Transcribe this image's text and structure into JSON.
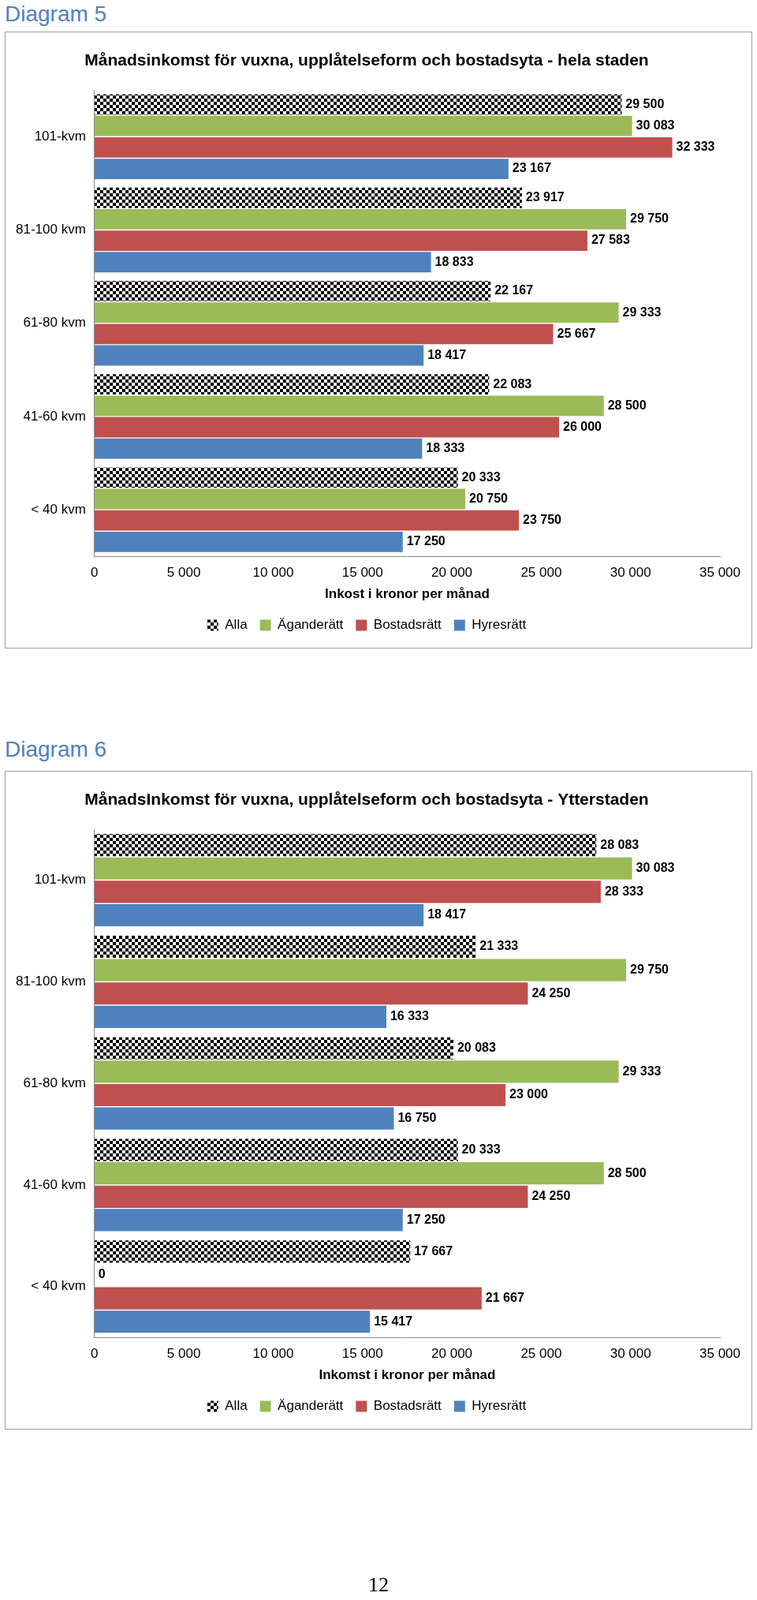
{
  "chart_data": [
    {
      "caption": "Diagram 5",
      "type": "bar",
      "orientation": "horizontal",
      "title": "Månadsinkomst för vuxna, upplåtelseform och bostadsyta - hela staden",
      "x_label": "Inkost i kronor per månad",
      "categories": [
        "101-kvm",
        "81-100 kvm",
        "61-80 kvm",
        "41-60 kvm",
        "< 40 kvm"
      ],
      "series": [
        {
          "name": "Alla",
          "color": "#000000",
          "values": [
            29500,
            23917,
            22167,
            22083,
            20333
          ],
          "value_labels": [
            "29 500",
            "23 917",
            "22 167",
            "22 083",
            "20 333"
          ]
        },
        {
          "name": "Äganderätt",
          "color": "#9bbb59",
          "values": [
            30083,
            29750,
            29333,
            28500,
            20750
          ],
          "value_labels": [
            "30 083",
            "29 750",
            "29 333",
            "28 500",
            "20 750"
          ]
        },
        {
          "name": "Bostadsrätt",
          "color": "#c0504d",
          "values": [
            32333,
            27583,
            25667,
            26000,
            23750
          ],
          "value_labels": [
            "32 333",
            "27 583",
            "25 667",
            "26 000",
            "23 750"
          ]
        },
        {
          "name": "Hyresrätt",
          "color": "#4f81bd",
          "values": [
            23167,
            18833,
            18417,
            18333,
            17250
          ],
          "value_labels": [
            "23 167",
            "18 833",
            "18 417",
            "18 333",
            "17 250"
          ]
        }
      ],
      "xlim": [
        0,
        35000
      ],
      "xticks": [
        0,
        {
          "value": 5000,
          "label": "5 000"
        },
        {
          "value": 10000,
          "label": "10 000"
        },
        {
          "value": 15000,
          "label": "15 000"
        },
        {
          "value": 20000,
          "label": "20 000"
        },
        {
          "value": 25000,
          "label": "25 000"
        },
        {
          "value": 30000,
          "label": "30 000"
        },
        {
          "value": 35000,
          "label": "35 000"
        }
      ],
      "grid": false,
      "legend": "bottom",
      "data_labels": true
    },
    {
      "caption": "Diagram 6",
      "type": "bar",
      "orientation": "horizontal",
      "title": "MånadsInkomst för vuxna, upplåtelseform och bostadsyta - Ytterstaden",
      "x_label": "Inkomst i kronor per månad",
      "categories": [
        "101-kvm",
        "81-100 kvm",
        "61-80 kvm",
        "41-60 kvm",
        "< 40 kvm"
      ],
      "series": [
        {
          "name": "Alla",
          "color": "#000000",
          "values": [
            28083,
            21333,
            20083,
            20333,
            17667
          ],
          "value_labels": [
            "28 083",
            "21 333",
            "20 083",
            "20 333",
            "17 667"
          ]
        },
        {
          "name": "Äganderätt",
          "color": "#9bbb59",
          "values": [
            30083,
            29750,
            29333,
            28500,
            0
          ],
          "value_labels": [
            "30 083",
            "29 750",
            "29 333",
            "28 500",
            "0"
          ]
        },
        {
          "name": "Bostadsrätt",
          "color": "#c0504d",
          "values": [
            28333,
            24250,
            23000,
            24250,
            21667
          ],
          "value_labels": [
            "28 333",
            "24 250",
            "23 000",
            "24 250",
            "21 667"
          ]
        },
        {
          "name": "Hyresrätt",
          "color": "#4f81bd",
          "values": [
            18417,
            16333,
            16750,
            17250,
            15417
          ],
          "value_labels": [
            "18 417",
            "16 333",
            "16 750",
            "17 250",
            "15 417"
          ]
        }
      ],
      "xlim": [
        0,
        35000
      ],
      "xticks": [
        0,
        {
          "value": 5000,
          "label": "5 000"
        },
        {
          "value": 10000,
          "label": "10 000"
        },
        {
          "value": 15000,
          "label": "15 000"
        },
        {
          "value": 20000,
          "label": "20 000"
        },
        {
          "value": 25000,
          "label": "25 000"
        },
        {
          "value": 30000,
          "label": "30 000"
        },
        {
          "value": 35000,
          "label": "35 000"
        }
      ],
      "grid": false,
      "legend": "bottom",
      "data_labels": true
    }
  ],
  "page_number": "12"
}
